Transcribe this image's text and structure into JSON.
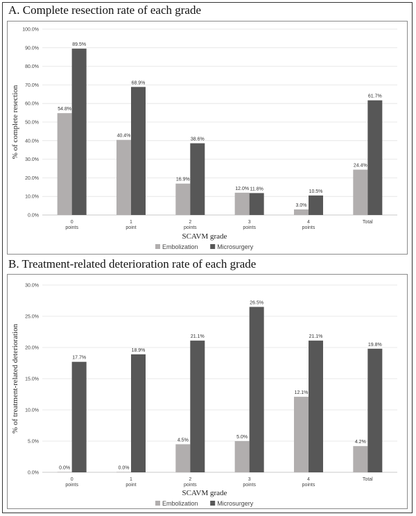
{
  "colors": {
    "embolization": "#b1aeae",
    "microsurgery": "#575757"
  },
  "chart_data": [
    {
      "type": "bar",
      "title": "A.  Complete resection rate of each grade",
      "xlabel": "SCAVM grade",
      "ylabel": "% of complete resection",
      "ylim": [
        0,
        100
      ],
      "ytick_step": 10,
      "yticks": [
        "0.0%",
        "10.0%",
        "20.0%",
        "30.0%",
        "40.0%",
        "50.0%",
        "60.0%",
        "70.0%",
        "80.0%",
        "90.0%",
        "100.0%"
      ],
      "categories": [
        [
          "0",
          "points"
        ],
        [
          "1",
          "point"
        ],
        [
          "2",
          "points"
        ],
        [
          "3",
          "points"
        ],
        [
          "4",
          "points"
        ],
        [
          "Total"
        ]
      ],
      "series": [
        {
          "name": "Embolization",
          "values": [
            54.8,
            40.4,
            16.9,
            12.0,
            3.0,
            24.4
          ],
          "labels": [
            "54.8%",
            "40.4%",
            "16.9%",
            "12.0%",
            "3.0%",
            "24.4%"
          ]
        },
        {
          "name": "Microsurgery",
          "values": [
            89.5,
            68.9,
            38.6,
            11.8,
            10.5,
            61.7
          ],
          "labels": [
            "89.5%",
            "68.9%",
            "38.6%",
            "11.8%",
            "10.5%",
            "61.7%"
          ]
        }
      ],
      "legend": "bottom"
    },
    {
      "type": "bar",
      "title": "B.  Treatment-related deterioration rate of each grade",
      "xlabel": "SCAVM grade",
      "ylabel": "% of treatment-related deterioration",
      "ylim": [
        0,
        30
      ],
      "ytick_step": 5,
      "yticks": [
        "0.0%",
        "5.0%",
        "10.0%",
        "15.0%",
        "20.0%",
        "25.0%",
        "30.0%"
      ],
      "categories": [
        [
          "0",
          "points"
        ],
        [
          "1",
          "point"
        ],
        [
          "2",
          "points"
        ],
        [
          "3",
          "points"
        ],
        [
          "4",
          "points"
        ],
        [
          "Total"
        ]
      ],
      "series": [
        {
          "name": "Embolization",
          "values": [
            0.0,
            0.0,
            4.5,
            5.0,
            12.1,
            4.2
          ],
          "labels": [
            "0.0%",
            "0.0%",
            "4.5%",
            "5.0%",
            "12.1%",
            "4.2%"
          ]
        },
        {
          "name": "Microsurgery",
          "values": [
            17.7,
            18.9,
            21.1,
            26.5,
            21.1,
            19.8
          ],
          "labels": [
            "17.7%",
            "18.9%",
            "21.1%",
            "26.5%",
            "21.1%",
            "19.8%"
          ]
        }
      ],
      "legend": "bottom"
    }
  ]
}
